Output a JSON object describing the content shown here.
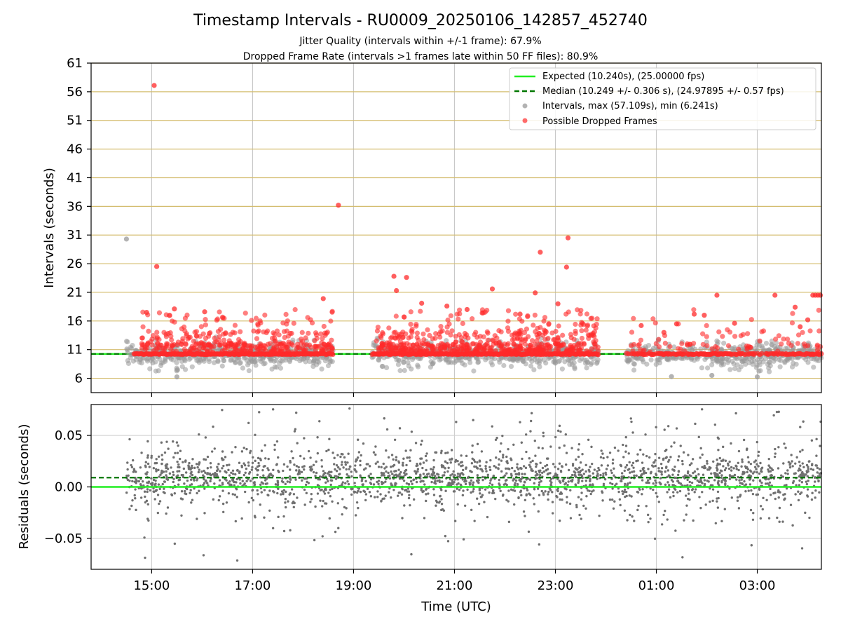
{
  "chart_data": [
    {
      "type": "scatter",
      "title": "Timestamp Intervals - RU0009_20250106_142857_452740",
      "subtitle_lines": [
        "Jitter Quality (intervals within +/-1 frame): 67.9%",
        "Dropped Frame Rate (intervals >1 frames late within 50 FF files): 80.9%"
      ],
      "xlabel": "",
      "ylabel": "Intervals (seconds)",
      "x_unit": "hours since 00:00 UTC (2025-01-06), continuing past midnight",
      "xlim": [
        13.8,
        28.27
      ],
      "ylim": [
        3.5,
        61
      ],
      "yticks": [
        6,
        11,
        16,
        21,
        26,
        31,
        36,
        41,
        46,
        51,
        56,
        61
      ],
      "ytick_labels": [
        "6",
        "11",
        "16",
        "21",
        "26",
        "31",
        "36",
        "41",
        "46",
        "51",
        "56",
        "61"
      ],
      "grid": "vertical gray lines at hour ticks; horizontal gold lines at each y tick",
      "expected_interval": 10.24,
      "median_interval": 10.249,
      "legend": {
        "placement": "top-right",
        "entries": [
          {
            "label": "Expected (10.240s), (25.00000 fps)",
            "style": "solid-line",
            "color": "#22ee22"
          },
          {
            "label": "Median (10.249 +/- 0.306 s), (24.97895 +/- 0.57 fps)",
            "style": "dashed-line",
            "color": "#007700"
          },
          {
            "label": "Intervals, max (57.109s), min (6.241s)",
            "style": "dot",
            "color": "#999999"
          },
          {
            "label": "Possible Dropped Frames",
            "style": "dot",
            "color": "#ff3b3b"
          }
        ]
      },
      "series": [
        {
          "name": "Intervals, max (57.109s), min (6.241s)",
          "distribution": "dense band around 10.24 s, mostly 7.5–12.5 s",
          "min": 6.241,
          "max": 57.109,
          "x_start": 14.5,
          "x_end": 28.27,
          "gaps": [
            [
              18.6,
              19.35
            ],
            [
              23.85,
              24.4
            ]
          ],
          "explicit_points": [
            [
              14.5,
              30.3
            ],
            [
              15.5,
              6.24
            ],
            [
              27.0,
              6.24
            ],
            [
              26.1,
              6.5
            ],
            [
              25.3,
              6.3
            ]
          ]
        },
        {
          "name": "Possible Dropped Frames",
          "baseline": 10.24,
          "distribution": "spread 11–20 s above baseline, densest 15:00–19:00 and 19:30–23:45",
          "explicit_points": [
            [
              15.05,
              57.1
            ],
            [
              15.1,
              25.5
            ],
            [
              18.7,
              36.2
            ],
            [
              23.25,
              30.5
            ],
            [
              23.22,
              25.4
            ],
            [
              22.7,
              28.0
            ],
            [
              19.8,
              23.8
            ],
            [
              20.05,
              23.6
            ],
            [
              19.85,
              21.3
            ],
            [
              21.75,
              21.6
            ],
            [
              22.6,
              20.9
            ],
            [
              23.05,
              19.0
            ],
            [
              18.4,
              19.9
            ],
            [
              20.35,
              19.1
            ],
            [
              20.85,
              18.6
            ],
            [
              21.25,
              18.0
            ],
            [
              21.55,
              17.4
            ],
            [
              22.3,
              17.2
            ],
            [
              14.9,
              17.5
            ],
            [
              15.45,
              18.1
            ],
            [
              16.05,
              17.6
            ],
            [
              25.75,
              17.2
            ],
            [
              25.95,
              17.0
            ],
            [
              26.2,
              20.5
            ],
            [
              26.55,
              15.6
            ],
            [
              27.35,
              20.5
            ],
            [
              27.75,
              18.4
            ],
            [
              27.85,
              15.0
            ],
            [
              28.1,
              20.5
            ],
            [
              28.15,
              20.5
            ],
            [
              28.2,
              20.5
            ],
            [
              28.25,
              20.5
            ],
            [
              24.7,
              15.2
            ],
            [
              25.15,
              14.0
            ],
            [
              25.4,
              15.5
            ],
            [
              28.0,
              16.2
            ]
          ]
        }
      ]
    },
    {
      "type": "scatter",
      "title": "",
      "xlabel": "Time (UTC)",
      "ylabel": "Residuals (seconds)",
      "xlim": [
        13.8,
        28.27
      ],
      "ylim": [
        -0.08,
        0.08
      ],
      "yticks": [
        -0.05,
        0.0,
        0.05
      ],
      "ytick_labels": [
        "−0.05",
        "0.00",
        "0.05"
      ],
      "xticks": [
        15,
        17,
        19,
        21,
        23,
        25,
        27
      ],
      "xtick_labels": [
        "15:00",
        "17:00",
        "19:00",
        "21:00",
        "23:00",
        "01:00",
        "03:00"
      ],
      "grid": "light gray lines at x and y ticks",
      "expected_residual": 0.0,
      "median_residual": 0.009,
      "series": [
        {
          "name": "Residuals",
          "color": "#777777",
          "distribution": "dense band -0.01 to 0.03 s, scattered out to ±0.08 s",
          "x_start": 14.5,
          "x_end": 28.27
        }
      ]
    }
  ]
}
